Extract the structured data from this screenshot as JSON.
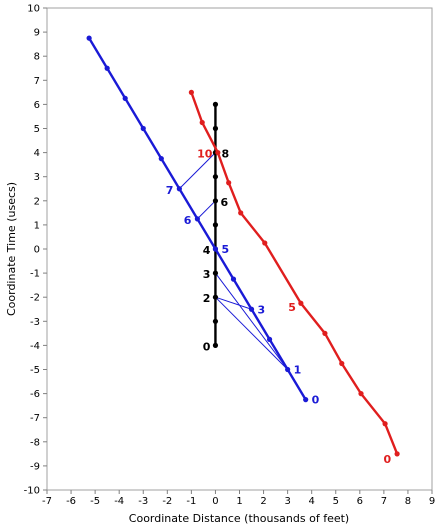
{
  "chart_data": {
    "type": "line",
    "title": "",
    "xlabel": "Coordinate Distance (thousands of feet)",
    "ylabel": "Coordinate Time (usecs)",
    "xlim": [
      -7,
      9
    ],
    "ylim": [
      -10,
      10
    ],
    "x_ticks": [
      -7,
      -6,
      -5,
      -4,
      -3,
      -2,
      -1,
      0,
      1,
      2,
      3,
      4,
      5,
      6,
      7,
      8,
      9
    ],
    "y_ticks": [
      -10,
      -9,
      -8,
      -7,
      -6,
      -5,
      -4,
      -3,
      -2,
      -1,
      0,
      1,
      2,
      3,
      4,
      5,
      6,
      7,
      8,
      9,
      10
    ],
    "grid": false,
    "series": [
      {
        "color": "#000000",
        "points": [
          [
            0,
            -4
          ],
          [
            0,
            -3
          ],
          [
            0,
            -2
          ],
          [
            0,
            -1
          ],
          [
            0,
            0
          ],
          [
            0,
            1
          ],
          [
            0,
            2
          ],
          [
            0,
            3
          ],
          [
            0,
            4
          ],
          [
            0,
            5
          ],
          [
            0,
            6
          ]
        ]
      },
      {
        "color": "#e01e1e",
        "points": [
          [
            7.55,
            -8.5
          ],
          [
            7.05,
            -7.25
          ],
          [
            6.05,
            -6.0
          ],
          [
            5.25,
            -4.75
          ],
          [
            4.55,
            -3.5
          ],
          [
            3.55,
            -2.25
          ],
          [
            2.05,
            0.25
          ],
          [
            1.05,
            1.5
          ],
          [
            0.55,
            2.75
          ],
          [
            0.1,
            4.0
          ],
          [
            -0.55,
            5.25
          ],
          [
            -1.0,
            6.5
          ]
        ]
      },
      {
        "color": "#1a1ad6",
        "points": [
          [
            3.75,
            -6.25
          ],
          [
            3.0,
            -5.0
          ],
          [
            2.25,
            -3.75
          ],
          [
            1.5,
            -2.5
          ],
          [
            0.75,
            -1.25
          ],
          [
            0,
            0
          ],
          [
            -0.75,
            1.25
          ],
          [
            -1.5,
            2.5
          ],
          [
            -2.25,
            3.75
          ],
          [
            -3.0,
            5.0
          ],
          [
            -3.75,
            6.25
          ],
          [
            -4.5,
            7.5
          ],
          [
            -5.25,
            8.75
          ]
        ]
      }
    ],
    "connectors": [
      {
        "from": [
          0,
          -1
        ],
        "to": [
          3.0,
          -5.0
        ]
      },
      {
        "from": [
          0,
          -2
        ],
        "to": [
          3.0,
          -5.0
        ]
      },
      {
        "from": [
          0,
          -2
        ],
        "to": [
          1.5,
          -2.5
        ]
      },
      {
        "from": [
          -1.5,
          2.5
        ],
        "to": [
          0,
          4
        ]
      },
      {
        "from": [
          -0.75,
          1.25
        ],
        "to": [
          0,
          2
        ]
      }
    ],
    "annotations": [
      {
        "text": "0",
        "x": 0,
        "y": -4,
        "color": "#000000",
        "anchor": "end",
        "dx": -5,
        "dy": 5
      },
      {
        "text": "2",
        "x": 0,
        "y": -2,
        "color": "#000000",
        "anchor": "end",
        "dx": -5,
        "dy": 5
      },
      {
        "text": "3",
        "x": 0,
        "y": -1,
        "color": "#000000",
        "anchor": "end",
        "dx": -5,
        "dy": 5
      },
      {
        "text": "4",
        "x": 0,
        "y": 0,
        "color": "#000000",
        "anchor": "end",
        "dx": -5,
        "dy": 5
      },
      {
        "text": "6",
        "x": 0,
        "y": 2,
        "color": "#000000",
        "anchor": "start",
        "dx": 5,
        "dy": 5
      },
      {
        "text": "8",
        "x": 0,
        "y": 4,
        "color": "#000000",
        "anchor": "start",
        "dx": 6,
        "dy": 5
      },
      {
        "text": "10",
        "x": 0,
        "y": 4,
        "color": "#e01e1e",
        "anchor": "end",
        "dx": -3,
        "dy": 5
      },
      {
        "text": "5",
        "x": 3.55,
        "y": -2.25,
        "color": "#e01e1e",
        "anchor": "end",
        "dx": -5,
        "dy": 8
      },
      {
        "text": "0",
        "x": 7.55,
        "y": -8.5,
        "color": "#e01e1e",
        "anchor": "end",
        "dx": -6,
        "dy": 9
      },
      {
        "text": "0",
        "x": 3.75,
        "y": -6.25,
        "color": "#1a1ad6",
        "anchor": "start",
        "dx": 6,
        "dy": 4
      },
      {
        "text": "1",
        "x": 3.0,
        "y": -5.0,
        "color": "#1a1ad6",
        "anchor": "start",
        "dx": 6,
        "dy": 4
      },
      {
        "text": "3",
        "x": 1.5,
        "y": -2.5,
        "color": "#1a1ad6",
        "anchor": "start",
        "dx": 6,
        "dy": 4
      },
      {
        "text": "5",
        "x": 0,
        "y": 0,
        "color": "#1a1ad6",
        "anchor": "start",
        "dx": 6,
        "dy": 4
      },
      {
        "text": "6",
        "x": -0.75,
        "y": 1.25,
        "color": "#1a1ad6",
        "anchor": "end",
        "dx": -6,
        "dy": 5
      },
      {
        "text": "7",
        "x": -1.5,
        "y": 2.5,
        "color": "#1a1ad6",
        "anchor": "end",
        "dx": -6,
        "dy": 5
      }
    ]
  }
}
